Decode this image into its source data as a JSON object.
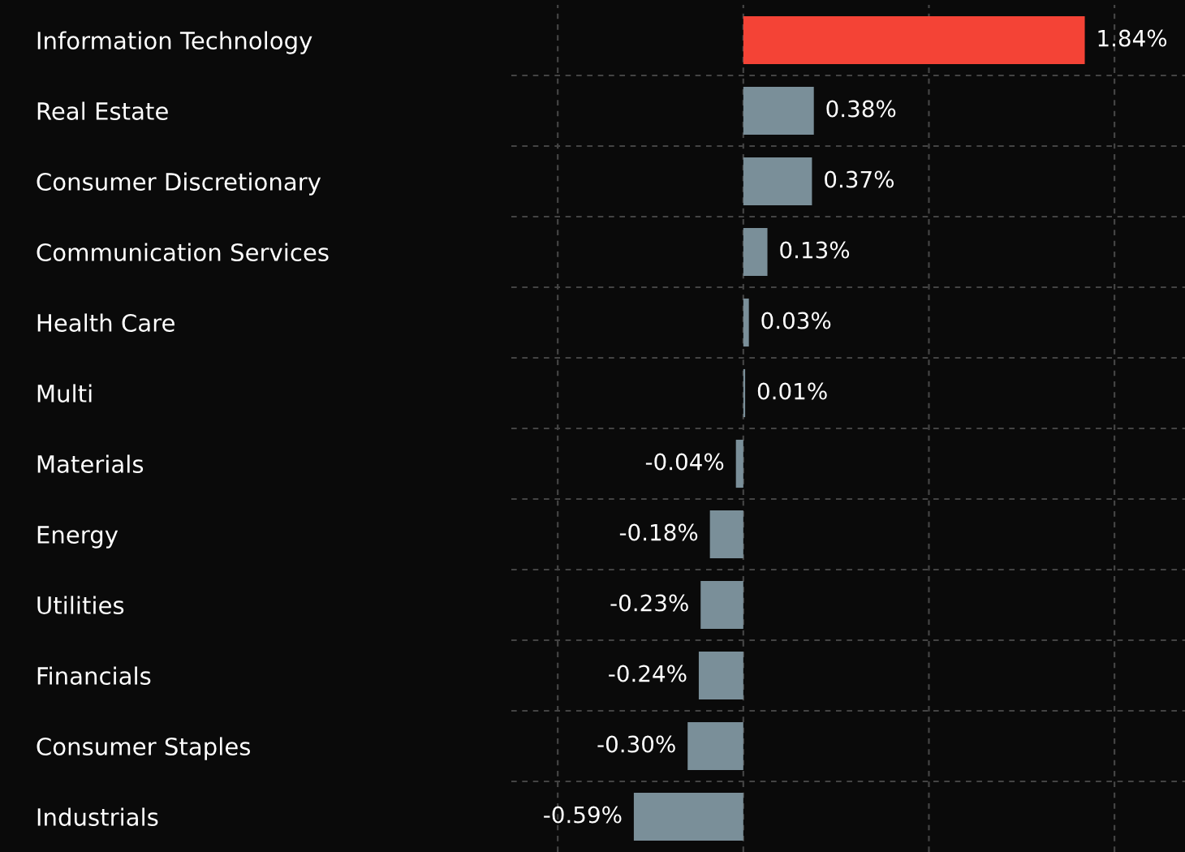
{
  "chart_data": {
    "type": "bar",
    "orientation": "horizontal",
    "categories": [
      "Information Technology",
      "Real Estate",
      "Consumer Discretionary",
      "Communication Services",
      "Health Care",
      "Multi",
      "Materials",
      "Energy",
      "Utilities",
      "Financials",
      "Consumer Staples",
      "Industrials"
    ],
    "values": [
      1.84,
      0.38,
      0.37,
      0.13,
      0.03,
      0.01,
      -0.04,
      -0.18,
      -0.23,
      -0.24,
      -0.3,
      -0.59
    ],
    "value_labels": [
      "1.84%",
      "0.38%",
      "0.37%",
      "0.13%",
      "0.03%",
      "0.01%",
      "-0.04%",
      "-0.18%",
      "-0.23%",
      "-0.24%",
      "-0.30%",
      "-0.59%"
    ],
    "colors": [
      "#f44336",
      "#7a8f99",
      "#7a8f99",
      "#7a8f99",
      "#7a8f99",
      "#7a8f99",
      "#7a8f99",
      "#7a8f99",
      "#7a8f99",
      "#7a8f99",
      "#7a8f99",
      "#7a8f99"
    ],
    "xlim": [
      -1.25,
      2.38
    ],
    "xticks": [
      {
        "value": -1,
        "label": null
      },
      {
        "value": 0,
        "label": null
      },
      {
        "value": 1,
        "label": null
      },
      {
        "value": 2,
        "label": null
      }
    ],
    "grid": true,
    "tick_labels": "y"
  }
}
